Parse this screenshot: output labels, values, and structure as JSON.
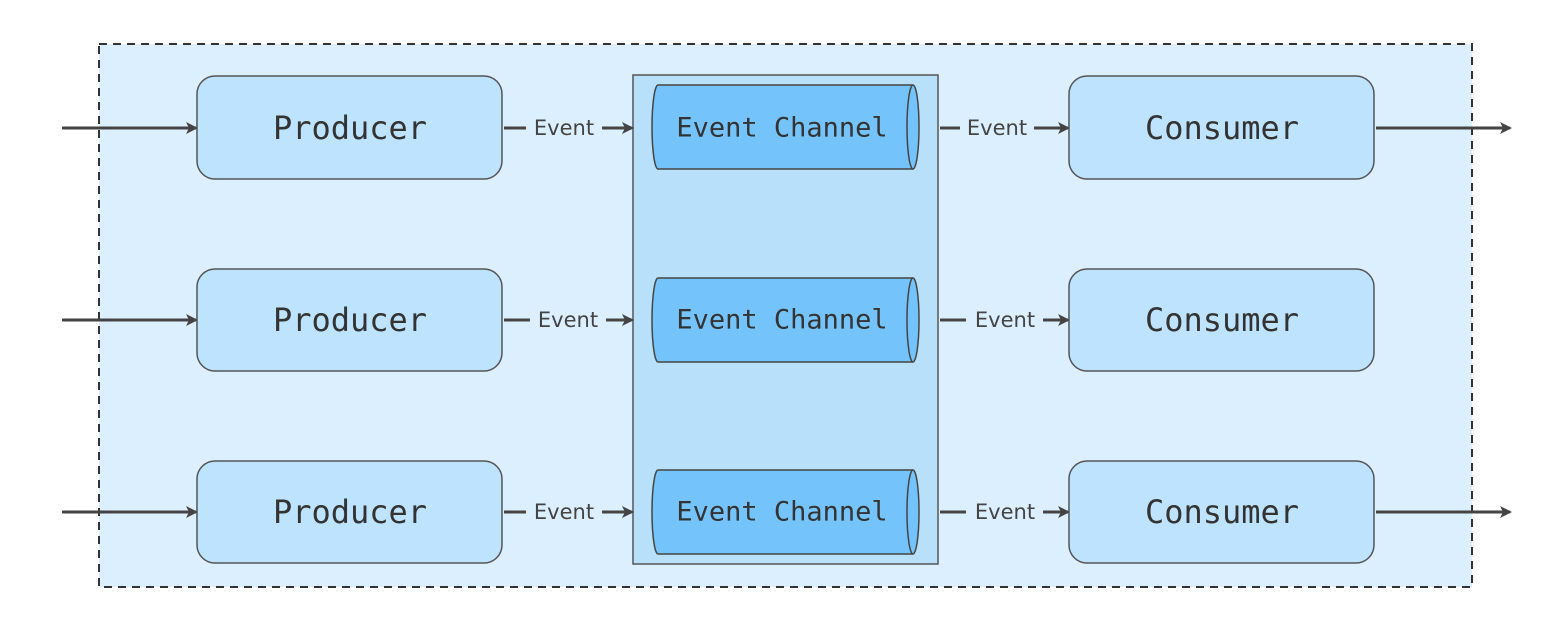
{
  "colors": {
    "outer_fill": "#dcefff",
    "outer_border": "#333333",
    "box_fill": "#bde3fe",
    "box_border": "#555555",
    "channel_fill": "#74c3fb",
    "group_fill": "#b8e0fb",
    "arrow": "#444444"
  },
  "rows": [
    {
      "producer": "Producer",
      "event_in": "Event",
      "channel": "Event Channel",
      "event_out": "Event",
      "consumer": "Consumer",
      "has_output": true
    },
    {
      "producer": "Producer",
      "event_in": "Event",
      "channel": "Event Channel",
      "event_out": "Event",
      "consumer": "Consumer",
      "has_output": false
    },
    {
      "producer": "Producer",
      "event_in": "Event",
      "channel": "Event Channel",
      "event_out": "Event",
      "consumer": "Consumer",
      "has_output": true
    }
  ]
}
